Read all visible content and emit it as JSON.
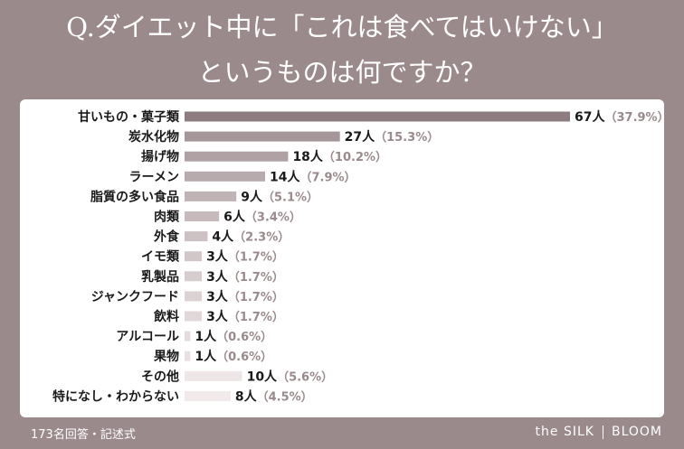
{
  "title_lines": [
    "Q.ダイエット中に「これは食べてはいけない」",
    "というものは何ですか？"
  ],
  "footnote": "173名回答・記述式",
  "brand": {
    "left": "the SILK",
    "right": "BLOOM"
  },
  "colors": {
    "background": "#9a8a8c",
    "bar_top": "#8e7d80",
    "bar_light": "#f1e9ea",
    "label_text": "#1a1a1a",
    "count_text": "#1a1a1a",
    "percent_text": "#9a8a8c"
  },
  "chart_data": {
    "type": "bar",
    "orientation": "horizontal",
    "title": "Q.ダイエット中に「これは食べてはいけない」というものは何ですか？",
    "categories": [
      "甘いもの・菓子類",
      "炭水化物",
      "揚げ物",
      "ラーメン",
      "脂質の多い食品",
      "肉類",
      "外食",
      "イモ類",
      "乳製品",
      "ジャンクフード",
      "飲料",
      "アルコール",
      "果物",
      "その他",
      "特になし・わからない"
    ],
    "series": [
      {
        "values": [
          67,
          27,
          18,
          14,
          9,
          6,
          4,
          3,
          3,
          3,
          3,
          1,
          1,
          10,
          8
        ],
        "value_labels": [
          "67人",
          "27人",
          "18人",
          "14人",
          "9人",
          "6人",
          "4人",
          "3人",
          "3人",
          "3人",
          "3人",
          "1人",
          "1人",
          "10人",
          "8人"
        ],
        "percent_labels": [
          "（37.9%）",
          "（15.3%）",
          "（10.2%）",
          "（7.9%）",
          "（5.1%）",
          "（3.4%）",
          "（2.3%）",
          "（1.7%）",
          "（1.7%）",
          "（1.7%）",
          "（1.7%）",
          "（0.6%）",
          "（0.6%）",
          "（5.6%）",
          "（4.5%）"
        ]
      }
    ],
    "xlim": [
      0,
      67
    ],
    "grid": false,
    "legend": "none"
  }
}
